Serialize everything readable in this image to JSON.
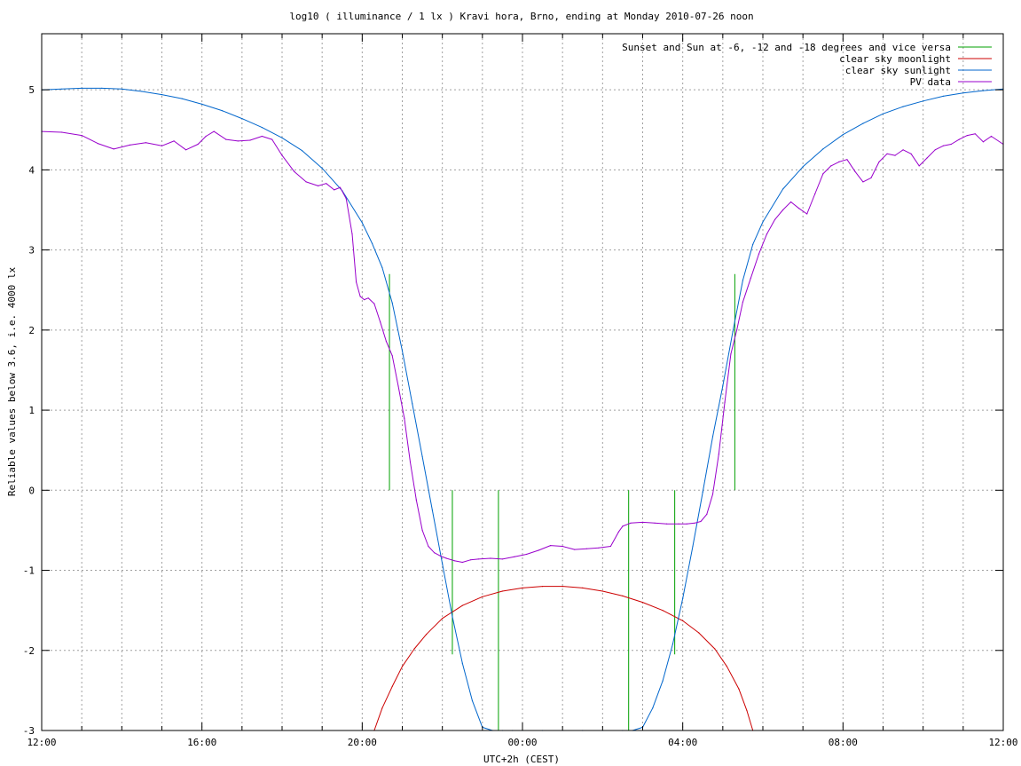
{
  "chart_data": {
    "type": "line",
    "title": "log10 ( illuminance / 1 lx ) Kravi hora, Brno, ending at Monday 2010-07-26 noon",
    "xlabel": "UTC+2h (CEST)",
    "ylabel": "Reliable values below 3.6, i.e. 4000 lx",
    "x_unit": "hours",
    "xlim": [
      12,
      36
    ],
    "ylim": [
      -3,
      5.7
    ],
    "xticks": [
      12,
      16,
      20,
      24,
      28,
      32,
      36
    ],
    "xtick_labels": [
      "12:00",
      "16:00",
      "20:00",
      "00:00",
      "04:00",
      "08:00",
      "12:00"
    ],
    "x_minor_step": 1,
    "yticks": [
      -3,
      -2,
      -1,
      0,
      1,
      2,
      3,
      4,
      5
    ],
    "ytick_labels": [
      "-3",
      "-2",
      "-1",
      "0",
      "1",
      "2",
      "3",
      "4",
      "5"
    ],
    "grid": true,
    "legend_position": "top-right",
    "series": [
      {
        "name": "Sunset and Sun at -6, -12 and -18 degrees and vice versa",
        "color": "#00a000",
        "kind": "vlines",
        "lines": [
          {
            "x": 20.68,
            "y0": 0,
            "y1": 2.7
          },
          {
            "x": 22.25,
            "y0": -2.05,
            "y1": 0
          },
          {
            "x": 23.4,
            "y0": -3,
            "y1": 0
          },
          {
            "x": 26.65,
            "y0": -3,
            "y1": 0
          },
          {
            "x": 27.8,
            "y0": -2.05,
            "y1": 0
          },
          {
            "x": 29.3,
            "y0": 0,
            "y1": 2.7
          }
        ]
      },
      {
        "name": "clear sky moonlight",
        "color": "#cc0000",
        "kind": "line",
        "x": [
          20.3,
          20.5,
          20.75,
          21.0,
          21.3,
          21.6,
          22.0,
          22.5,
          23.0,
          23.5,
          24.0,
          24.5,
          25.0,
          25.5,
          26.0,
          26.5,
          27.0,
          27.5,
          28.0,
          28.4,
          28.8,
          29.1,
          29.4,
          29.6,
          29.75
        ],
        "y": [
          -3.0,
          -2.72,
          -2.45,
          -2.2,
          -1.98,
          -1.8,
          -1.6,
          -1.44,
          -1.33,
          -1.26,
          -1.22,
          -1.2,
          -1.2,
          -1.22,
          -1.26,
          -1.32,
          -1.4,
          -1.5,
          -1.63,
          -1.78,
          -1.98,
          -2.2,
          -2.48,
          -2.75,
          -3.0
        ]
      },
      {
        "name": "clear sky sunlight",
        "color": "#0066cc",
        "kind": "line",
        "x": [
          12.0,
          12.5,
          13.0,
          13.5,
          14.0,
          14.5,
          15.0,
          15.5,
          16.0,
          16.5,
          17.0,
          17.5,
          18.0,
          18.5,
          19.0,
          19.5,
          20.0,
          20.25,
          20.5,
          20.75,
          21.0,
          21.25,
          21.5,
          21.75,
          22.0,
          22.25,
          22.5,
          22.75,
          23.0,
          23.25,
          23.5,
          23.75,
          24.0,
          24.5,
          25.0,
          25.5,
          26.0,
          26.5,
          26.75,
          27.0,
          27.25,
          27.5,
          27.75,
          28.0,
          28.25,
          28.5,
          28.75,
          29.0,
          29.25,
          29.5,
          29.75,
          30.0,
          30.5,
          31.0,
          31.5,
          32.0,
          32.5,
          33.0,
          33.5,
          34.0,
          34.5,
          35.0,
          35.5,
          36.0
        ],
        "y": [
          5.0,
          5.01,
          5.02,
          5.02,
          5.01,
          4.98,
          4.94,
          4.89,
          4.82,
          4.74,
          4.64,
          4.53,
          4.4,
          4.24,
          4.02,
          3.74,
          3.34,
          3.08,
          2.78,
          2.34,
          1.74,
          1.08,
          0.42,
          -0.25,
          -0.92,
          -1.58,
          -2.16,
          -2.63,
          -2.96,
          -3.0,
          -3.0,
          -3.0,
          -3.0,
          -3.0,
          -3.0,
          -3.0,
          -3.0,
          -3.0,
          -3.0,
          -2.96,
          -2.72,
          -2.38,
          -1.92,
          -1.35,
          -0.7,
          -0.02,
          0.67,
          1.3,
          1.98,
          2.62,
          3.07,
          3.35,
          3.76,
          4.04,
          4.26,
          4.44,
          4.58,
          4.7,
          4.79,
          4.86,
          4.92,
          4.96,
          4.99,
          5.01
        ]
      },
      {
        "name": "PV data",
        "color": "#9900cc",
        "kind": "line",
        "x": [
          12.0,
          12.5,
          13.0,
          13.4,
          13.8,
          14.2,
          14.6,
          15.0,
          15.3,
          15.6,
          15.9,
          16.1,
          16.3,
          16.6,
          16.9,
          17.2,
          17.5,
          17.75,
          18.0,
          18.3,
          18.6,
          18.9,
          19.1,
          19.3,
          19.45,
          19.6,
          19.75,
          19.85,
          19.95,
          20.05,
          20.15,
          20.3,
          20.45,
          20.6,
          20.75,
          20.9,
          21.05,
          21.2,
          21.35,
          21.5,
          21.65,
          21.8,
          21.95,
          22.1,
          22.3,
          22.5,
          22.7,
          22.9,
          23.2,
          23.5,
          23.8,
          24.1,
          24.4,
          24.7,
          25.0,
          25.3,
          25.6,
          25.9,
          26.2,
          26.4,
          26.5,
          26.7,
          27.0,
          27.3,
          27.6,
          27.9,
          28.1,
          28.3,
          28.45,
          28.6,
          28.75,
          28.9,
          29.05,
          29.2,
          29.35,
          29.5,
          29.7,
          29.9,
          30.1,
          30.3,
          30.5,
          30.7,
          30.9,
          31.1,
          31.3,
          31.5,
          31.7,
          31.9,
          32.1,
          32.3,
          32.5,
          32.7,
          32.9,
          33.1,
          33.3,
          33.5,
          33.7,
          33.9,
          34.1,
          34.3,
          34.5,
          34.7,
          34.9,
          35.1,
          35.3,
          35.5,
          35.7,
          36.0
        ],
        "y": [
          4.48,
          4.47,
          4.43,
          4.33,
          4.26,
          4.31,
          4.34,
          4.3,
          4.36,
          4.25,
          4.32,
          4.42,
          4.48,
          4.38,
          4.36,
          4.37,
          4.42,
          4.38,
          4.18,
          3.98,
          3.85,
          3.8,
          3.83,
          3.75,
          3.78,
          3.64,
          3.2,
          2.6,
          2.42,
          2.38,
          2.4,
          2.33,
          2.1,
          1.86,
          1.68,
          1.3,
          0.9,
          0.35,
          -0.12,
          -0.5,
          -0.7,
          -0.78,
          -0.82,
          -0.85,
          -0.88,
          -0.9,
          -0.87,
          -0.86,
          -0.85,
          -0.86,
          -0.83,
          -0.8,
          -0.75,
          -0.69,
          -0.7,
          -0.74,
          -0.73,
          -0.72,
          -0.7,
          -0.52,
          -0.45,
          -0.41,
          -0.4,
          -0.41,
          -0.42,
          -0.42,
          -0.42,
          -0.41,
          -0.39,
          -0.3,
          -0.05,
          0.45,
          1.1,
          1.7,
          2.0,
          2.35,
          2.65,
          2.95,
          3.2,
          3.38,
          3.5,
          3.6,
          3.52,
          3.45,
          3.7,
          3.95,
          4.05,
          4.1,
          4.13,
          3.98,
          3.85,
          3.9,
          4.1,
          4.2,
          4.18,
          4.25,
          4.2,
          4.05,
          4.15,
          4.25,
          4.3,
          4.32,
          4.38,
          4.43,
          4.45,
          4.35,
          4.42,
          4.32
        ]
      }
    ]
  }
}
